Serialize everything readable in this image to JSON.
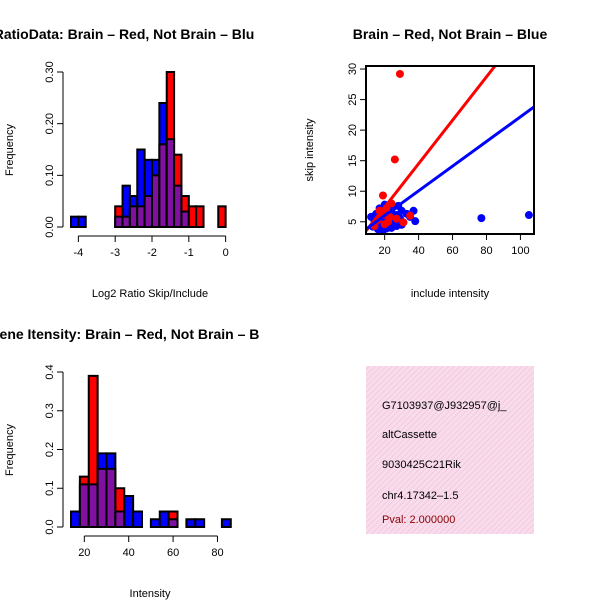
{
  "colors": {
    "red": "#ff0000",
    "blue": "#0000ff",
    "purple": "#7f10a0",
    "box_bg": "#f8dcec",
    "pval": "#8b0000"
  },
  "chart_data": [
    {
      "type": "bar",
      "title": "RatioData: Brain – Red, Not Brain – Blu",
      "xlabel": "Log2 Ratio Skip/Include",
      "ylabel": "Frequency",
      "xlim": [
        -4.2,
        0.2
      ],
      "ylim": [
        0,
        0.3
      ],
      "xticks": [
        "-4",
        "-3",
        "-2",
        "-1",
        "0"
      ],
      "xtick_values": [
        -4,
        -3,
        -2,
        -1,
        0
      ],
      "yticks": [
        "0.00",
        "0.10",
        "0.20",
        "0.30"
      ],
      "ytick_values": [
        0,
        0.1,
        0.2,
        0.3
      ],
      "bin_edges": [
        -4.2,
        -4.0,
        -3.8,
        -3.6,
        -3.4,
        -3.2,
        -3.0,
        -2.8,
        -2.6,
        -2.4,
        -2.2,
        -2.0,
        -1.8,
        -1.6,
        -1.4,
        -1.2,
        -1.0,
        -0.8,
        -0.6,
        -0.4,
        -0.2,
        0.0
      ],
      "series": [
        {
          "name": "Brain",
          "color": "red",
          "values": [
            0,
            0,
            0,
            0,
            0,
            0,
            0.04,
            0.02,
            0.04,
            0.04,
            0.06,
            0.1,
            0.16,
            0.3,
            0.14,
            0.06,
            0.04,
            0.04,
            0,
            0,
            0.04
          ]
        },
        {
          "name": "Not Brain",
          "color": "blue",
          "values": [
            0.02,
            0.02,
            0,
            0,
            0,
            0,
            0.02,
            0.08,
            0.06,
            0.15,
            0.13,
            0.13,
            0.24,
            0.17,
            0.08,
            0.03,
            0,
            0,
            0,
            0,
            0
          ]
        }
      ]
    },
    {
      "type": "scatter",
      "title": "Brain – Red, Not Brain – Blue",
      "xlabel": "include intensity",
      "ylabel": "skip intensity",
      "xlim": [
        9,
        108
      ],
      "ylim": [
        3,
        30.5
      ],
      "xticks": [
        "20",
        "40",
        "60",
        "80",
        "100"
      ],
      "xtick_values": [
        20,
        40,
        60,
        80,
        100
      ],
      "yticks": [
        "5",
        "10",
        "15",
        "20",
        "25",
        "30"
      ],
      "ytick_values": [
        5,
        10,
        15,
        20,
        25,
        30
      ],
      "series": [
        {
          "name": "Brain",
          "color": "red",
          "points": [
            [
              29,
              29.2
            ],
            [
              26,
              15.2
            ],
            [
              19,
              9.3
            ],
            [
              24,
              8
            ],
            [
              21,
              7.2
            ],
            [
              17,
              6.8
            ],
            [
              19,
              6.1
            ],
            [
              23,
              5.8
            ],
            [
              27,
              5.5
            ],
            [
              31,
              4.9
            ],
            [
              16,
              5.3
            ],
            [
              20,
              4.6
            ],
            [
              14,
              4.3
            ],
            [
              22,
              5
            ],
            [
              35,
              6
            ]
          ],
          "fit": [
            [
              9,
              3.5
            ],
            [
              85,
              30.5
            ]
          ]
        },
        {
          "name": "Not Brain",
          "color": "blue",
          "points": [
            [
              12,
              5.8
            ],
            [
              14,
              5.1
            ],
            [
              15,
              6.3
            ],
            [
              16,
              4.5
            ],
            [
              17,
              7.2
            ],
            [
              18,
              5.5
            ],
            [
              18,
              6.8
            ],
            [
              19,
              4.1
            ],
            [
              20,
              7.8
            ],
            [
              20,
              5.3
            ],
            [
              21,
              6.2
            ],
            [
              22,
              4.8
            ],
            [
              22,
              7
            ],
            [
              23,
              5.8
            ],
            [
              24,
              6.5
            ],
            [
              25,
              4.6
            ],
            [
              25,
              7.4
            ],
            [
              26,
              5.2
            ],
            [
              27,
              6.1
            ],
            [
              28,
              7.6
            ],
            [
              29,
              5.6
            ],
            [
              30,
              6.8
            ],
            [
              31,
              4.9
            ],
            [
              33,
              6.3
            ],
            [
              37,
              6.8
            ],
            [
              38,
              5.1
            ],
            [
              77,
              5.6
            ],
            [
              105,
              6.1
            ],
            [
              13,
              4.2
            ],
            [
              16,
              3.8
            ],
            [
              19,
              3.6
            ],
            [
              21,
              3.9
            ],
            [
              24,
              4
            ],
            [
              27,
              4.3
            ],
            [
              30,
              4.5
            ],
            [
              35,
              5.8
            ]
          ],
          "fit": [
            [
              9,
              3.8
            ],
            [
              108,
              23.8
            ]
          ]
        }
      ]
    },
    {
      "type": "bar",
      "title": "Gene Itensity: Brain – Red, Not Brain – B",
      "xlabel": "Intensity",
      "ylabel": "Frequency",
      "xlim": [
        14,
        87
      ],
      "ylim": [
        0,
        0.4
      ],
      "xticks": [
        "20",
        "40",
        "60",
        "80"
      ],
      "xtick_values": [
        20,
        40,
        60,
        80
      ],
      "yticks": [
        "0.0",
        "0.1",
        "0.2",
        "0.3",
        "0.4"
      ],
      "ytick_values": [
        0,
        0.1,
        0.2,
        0.3,
        0.4
      ],
      "bin_edges": [
        14,
        18,
        22,
        26,
        30,
        34,
        38,
        42,
        46,
        50,
        54,
        58,
        62,
        66,
        70,
        74,
        78,
        82,
        86
      ],
      "series": [
        {
          "name": "Brain",
          "color": "red",
          "values": [
            0,
            0.13,
            0.39,
            0.15,
            0.15,
            0.1,
            0,
            0,
            0,
            0,
            0,
            0.04,
            0,
            0,
            0,
            0,
            0,
            0
          ]
        },
        {
          "name": "Not Brain",
          "color": "blue",
          "values": [
            0.04,
            0.11,
            0.11,
            0.19,
            0.19,
            0.04,
            0.08,
            0.04,
            0,
            0.02,
            0.04,
            0.02,
            0,
            0.02,
            0.02,
            0,
            0,
            0.02
          ]
        }
      ]
    }
  ],
  "info_box": {
    "lines": [
      "G7103937@J932957@j_",
      "altCassette",
      "9030425C21Rik",
      "chr4.17342–1.5"
    ],
    "pval": "Pval: 2.000000"
  }
}
